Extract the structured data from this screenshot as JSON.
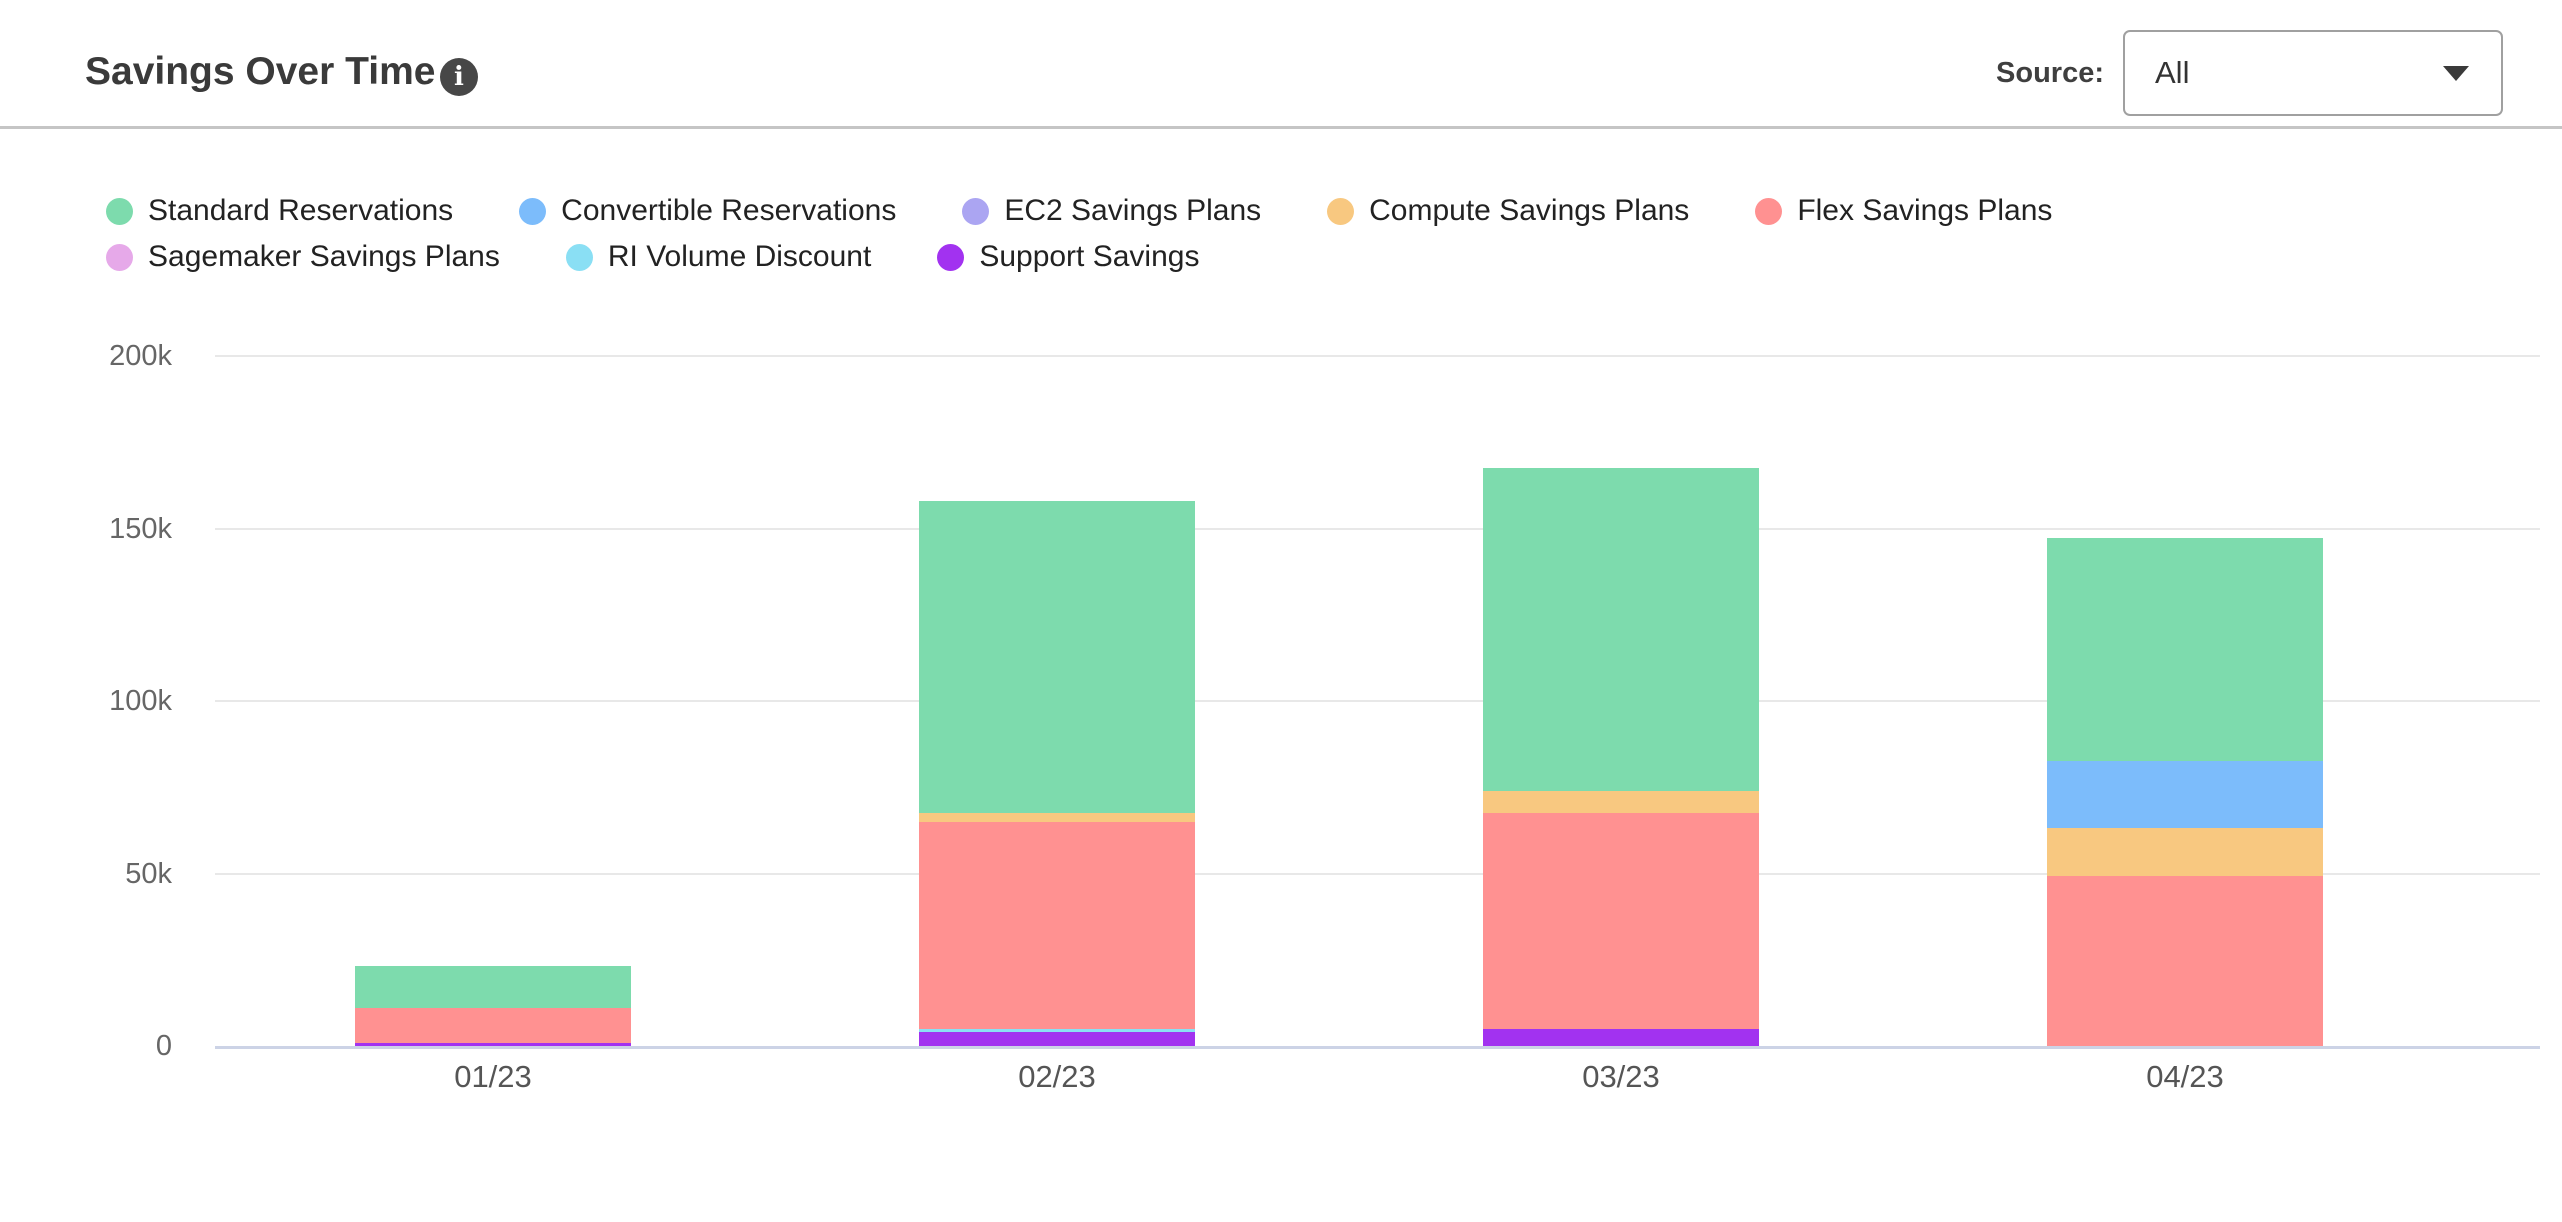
{
  "header": {
    "title": "Savings Over Time",
    "source_label": "Source:",
    "source_value": "All"
  },
  "chart_data": {
    "type": "bar",
    "stacked": true,
    "title": "Savings Over Time",
    "categories": [
      "01/23",
      "02/23",
      "03/23",
      "04/23"
    ],
    "y_unit": "k",
    "ylim": [
      0,
      200
    ],
    "ytick_labels": [
      "0",
      "50k",
      "100k",
      "150k",
      "200k"
    ],
    "grid": true,
    "legend_position": "top",
    "legend_rows": [
      5,
      3
    ],
    "series": [
      {
        "name": "Standard Reservations",
        "color": "#7DDBAD",
        "values": [
          12.2,
          90.4,
          93.6,
          64.6
        ]
      },
      {
        "name": "Convertible Reservations",
        "color": "#7CBCFB",
        "values": [
          0,
          0,
          0,
          19.4
        ]
      },
      {
        "name": "EC2 Savings Plans",
        "color": "#ABA5F2",
        "values": [
          0,
          0,
          0,
          0
        ]
      },
      {
        "name": "Compute Savings Plans",
        "color": "#F8C880",
        "values": [
          0,
          2.6,
          6.4,
          13.9
        ]
      },
      {
        "name": "Flex Savings Plans",
        "color": "#FF9191",
        "values": [
          10.1,
          60.0,
          62.6,
          49.3
        ]
      },
      {
        "name": "Sagemaker Savings Plans",
        "color": "#E6A9E9",
        "values": [
          0,
          0,
          0,
          0
        ]
      },
      {
        "name": "RI Volume Discount",
        "color": "#8ADFF4",
        "values": [
          0,
          0.9,
          0,
          0
        ]
      },
      {
        "name": "Support Savings",
        "color": "#A232F0",
        "values": [
          0.9,
          4.1,
          4.9,
          0
        ]
      }
    ],
    "totals": [
      23.2,
      158.0,
      167.5,
      147.2
    ]
  }
}
